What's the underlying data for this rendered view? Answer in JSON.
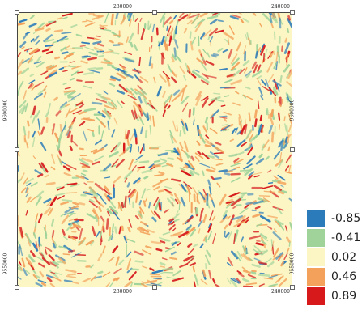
{
  "map": {
    "x_ticks_top": [
      "230000",
      "240000"
    ],
    "x_ticks_bottom": [
      "230000",
      "240000"
    ],
    "y_ticks_left": [
      "9600000",
      "9550000"
    ],
    "y_ticks_right": [
      "9600000",
      "9550000"
    ],
    "field_description": "diverging scalar field (blue = negative, red = positive)"
  },
  "legend": {
    "items": [
      {
        "label": "-0.85",
        "color": "#2b7bba"
      },
      {
        "label": "-0.41",
        "color": "#9fd39a"
      },
      {
        "label": "0.02",
        "color": "#fbf6c4"
      },
      {
        "label": "0.46",
        "color": "#f4a25b"
      },
      {
        "label": "0.89",
        "color": "#d7191c"
      }
    ]
  }
}
